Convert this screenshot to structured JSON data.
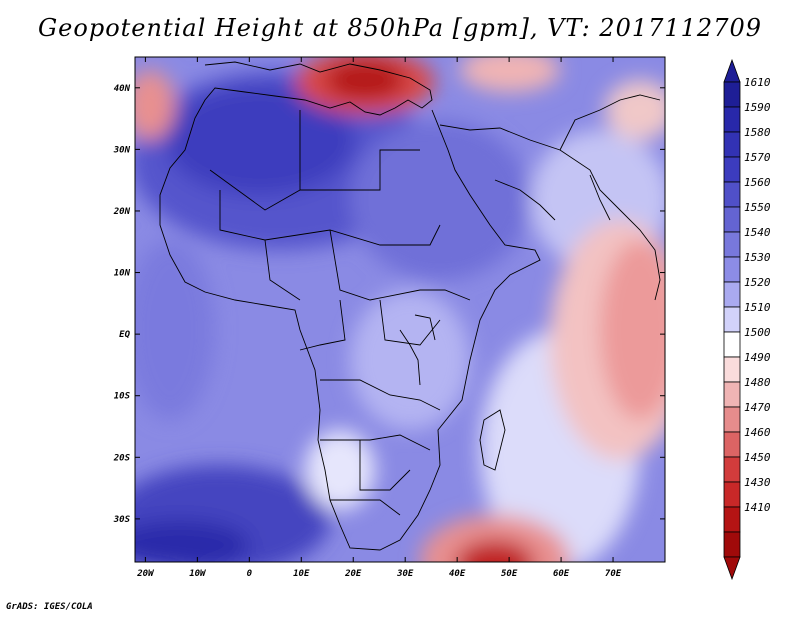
{
  "title": "Geopotential Height at 850hPa [gpm], VT: 2017112709",
  "credit": "GrADS: IGES/COLA",
  "axes": {
    "lat_labels": [
      "40N",
      "30N",
      "20N",
      "10N",
      "EQ",
      "10S",
      "20S",
      "30S"
    ],
    "lat_values": [
      40,
      30,
      20,
      10,
      0,
      -10,
      -20,
      -30
    ],
    "lon_labels": [
      "20W",
      "10W",
      "0",
      "10E",
      "20E",
      "30E",
      "40E",
      "50E",
      "60E",
      "70E"
    ],
    "lon_values": [
      -20,
      -10,
      0,
      10,
      20,
      30,
      40,
      50,
      60,
      70
    ]
  },
  "map_extent": {
    "lon": [
      -22,
      80
    ],
    "lat": [
      -37,
      45
    ]
  },
  "colorbar": {
    "labels": [
      "1610",
      "1590",
      "1580",
      "1570",
      "1560",
      "1550",
      "1540",
      "1530",
      "1520",
      "1510",
      "1500",
      "1490",
      "1480",
      "1470",
      "1460",
      "1450",
      "1430",
      "1410"
    ],
    "colors": [
      "#1e1e96",
      "#2828aa",
      "#3232b4",
      "#3c3cbe",
      "#5050c8",
      "#6464d2",
      "#7878dc",
      "#8c8ce6",
      "#aaaaf0",
      "#d2d2fa",
      "#ffffff",
      "#fadcdc",
      "#f0b4b4",
      "#e68c8c",
      "#dc6464",
      "#d23c3c",
      "#c82828",
      "#b41414",
      "#a00a0a"
    ],
    "top_arrow_color": "#1e1e96",
    "bottom_arrow_color": "#a00a0a"
  }
}
